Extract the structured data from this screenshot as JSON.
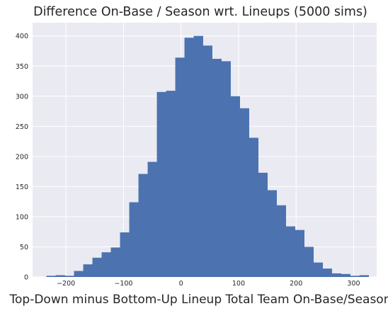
{
  "chart_data": {
    "type": "bar",
    "title": "Difference On-Base / Season wrt. Lineups (5000 sims)",
    "xlabel": "Top-Down minus Bottom-Up Lineup Total Team On-Base/Season",
    "ylabel": "",
    "xlim": [
      -258,
      340
    ],
    "ylim": [
      0,
      422
    ],
    "xticks": [
      -200,
      -100,
      0,
      100,
      200,
      300
    ],
    "yticks": [
      0,
      50,
      100,
      150,
      200,
      250,
      300,
      350,
      400
    ],
    "xtick_labels": [
      "−200",
      "−100",
      "0",
      "100",
      "200",
      "300"
    ],
    "ytick_labels": [
      "0",
      "50",
      "100",
      "150",
      "200",
      "250",
      "300",
      "350",
      "400"
    ],
    "grid": true,
    "bar_color": "#4c72b0",
    "plot_background": "#eaeaf2",
    "bin_edges": [
      -234,
      -218,
      -202,
      -186,
      -170,
      -154,
      -138,
      -122,
      -106,
      -90,
      -74,
      -58,
      -42,
      -26,
      -10,
      6,
      22,
      38,
      54,
      70,
      86,
      102,
      118,
      134,
      150,
      166,
      182,
      198,
      214,
      230,
      246,
      262,
      278,
      294,
      310,
      326
    ],
    "values": [
      2,
      3,
      2,
      10,
      21,
      32,
      41,
      49,
      74,
      124,
      171,
      191,
      307,
      309,
      364,
      397,
      400,
      384,
      362,
      358,
      300,
      280,
      231,
      173,
      144,
      119,
      84,
      78,
      50,
      24,
      14,
      6,
      5,
      2,
      3
    ]
  }
}
